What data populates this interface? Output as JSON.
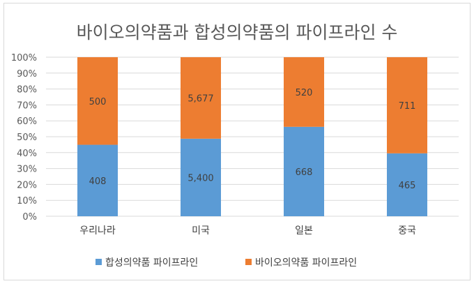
{
  "chart_data": {
    "type": "bar",
    "stacked": "percent",
    "title": "바이오의약품과 합성의약품의 파이프라인 수",
    "xlabel": "",
    "ylabel": "",
    "categories": [
      "우리나라",
      "미국",
      "일본",
      "중국"
    ],
    "series": [
      {
        "name": "합성의약품 파이프라인",
        "values": [
          408,
          5400,
          668,
          465
        ],
        "labels": [
          "408",
          "5,400",
          "668",
          "465"
        ],
        "color": "#5b9bd5"
      },
      {
        "name": "바이오의약품 파이프라인",
        "values": [
          500,
          5677,
          520,
          711
        ],
        "labels": [
          "500",
          "5,677",
          "520",
          "711"
        ],
        "color": "#ed7d31"
      }
    ],
    "yticks": [
      "0%",
      "10%",
      "20%",
      "30%",
      "40%",
      "50%",
      "60%",
      "70%",
      "80%",
      "90%",
      "100%"
    ],
    "ylim": [
      0,
      100
    ],
    "grid": true,
    "legend": "bottom"
  }
}
